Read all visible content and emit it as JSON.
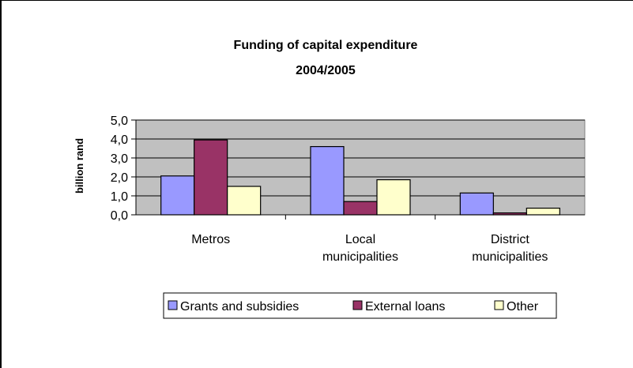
{
  "chart_data": {
    "type": "bar",
    "title": [
      "Funding of capital expenditure",
      "2004/2005"
    ],
    "ylabel": "billion rand",
    "xlabel": "",
    "ylim": [
      0,
      5
    ],
    "yticks": [
      "0,0",
      "1,0",
      "2,0",
      "3,0",
      "4,0",
      "5,0"
    ],
    "categories": [
      [
        "Metros"
      ],
      [
        "Local",
        "municipalities"
      ],
      [
        "District",
        "municipalities"
      ]
    ],
    "series": [
      {
        "name": "Grants and subsidies",
        "color": "#9999ff",
        "values": [
          2.05,
          3.6,
          1.15
        ]
      },
      {
        "name": "External loans",
        "color": "#993366",
        "values": [
          3.95,
          0.7,
          0.1
        ]
      },
      {
        "name": "Other",
        "color": "#ffffcc",
        "values": [
          1.5,
          1.85,
          0.35
        ]
      }
    ],
    "plot_background": "#c0c0c0",
    "grid": true,
    "legend_position": "bottom"
  }
}
